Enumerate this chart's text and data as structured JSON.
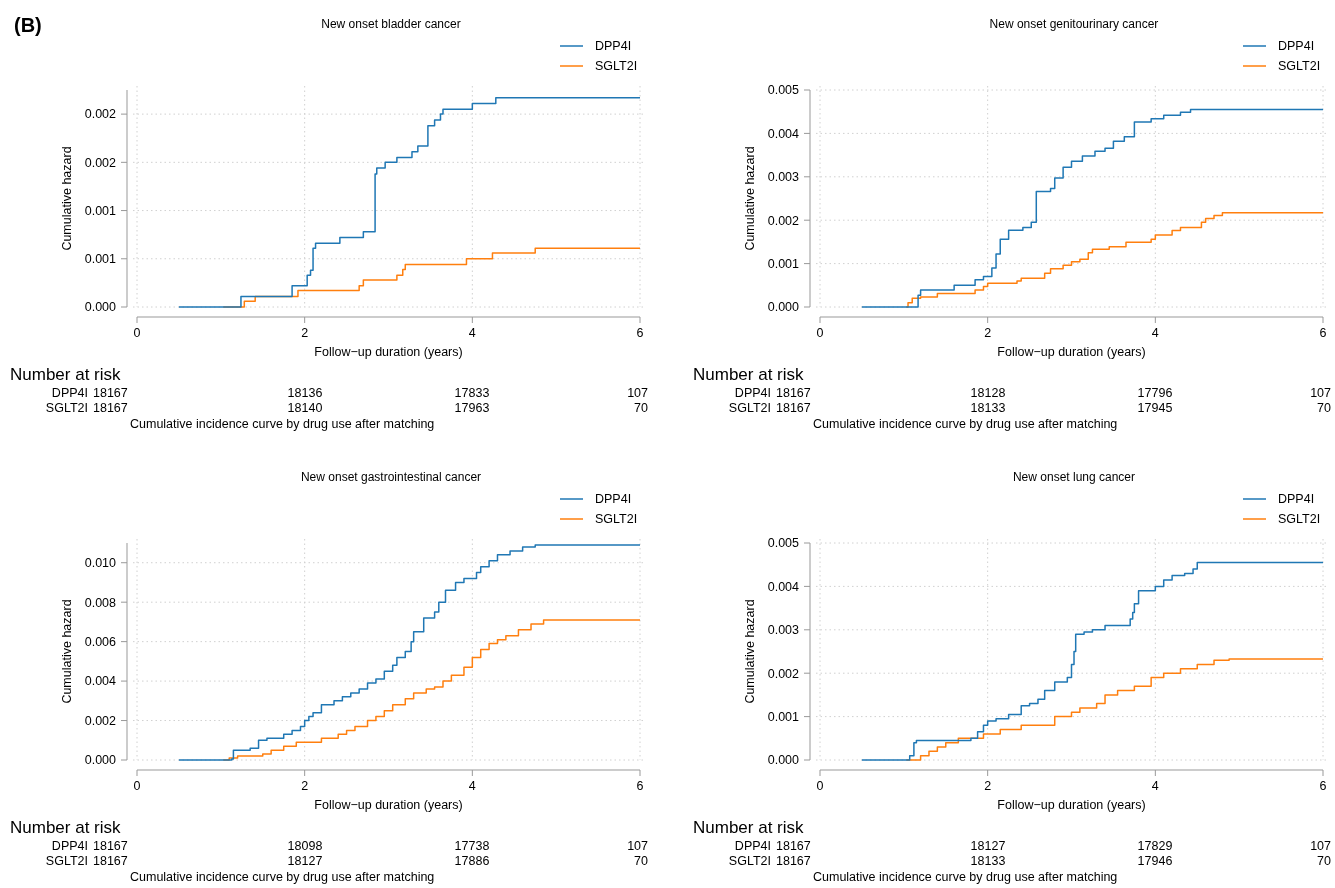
{
  "chart_data": [
    {
      "type": "step",
      "title": "New onset bladder cancer",
      "xlabel": "Follow−up duration (years)",
      "ylabel": "Cumulative hazard",
      "xlim": [
        0,
        6
      ],
      "xticks": [
        0,
        2,
        4,
        6
      ],
      "ylim": [
        0,
        0.00225
      ],
      "yticks": [
        {
          "value": 0,
          "label": "0.000"
        },
        {
          "value": 0.0005,
          "label": "0.001"
        },
        {
          "value": 0.001,
          "label": "0.001"
        },
        {
          "value": 0.0015,
          "label": "0.002"
        },
        {
          "value": 0.002,
          "label": "0.002"
        }
      ],
      "grid": true,
      "legend": "top right",
      "line_style": "solid",
      "series": [
        {
          "name": "DPP4I",
          "color": "#1f77b4",
          "x": [
            0.5,
            1.24,
            1.85,
            2.03,
            2.07,
            2.1,
            2.13,
            2.42,
            2.7,
            2.84,
            2.86,
            2.96,
            3.1,
            3.28,
            3.35,
            3.47,
            3.55,
            3.62,
            3.65,
            4.0,
            4.28,
            6
          ],
          "values": [
            0,
            0.00011,
            0.00022,
            0.00033,
            0.00038,
            0.00061,
            0.00066,
            0.00072,
            0.00078,
            0.00138,
            0.00144,
            0.0015,
            0.00155,
            0.00161,
            0.00167,
            0.00188,
            0.00194,
            0.002,
            0.00205,
            0.00211,
            0.00217,
            0.00217
          ]
        },
        {
          "name": "SGLT2I",
          "color": "#ff7f0e",
          "x": [
            1.03,
            1.28,
            1.41,
            1.92,
            2.65,
            2.7,
            3.1,
            3.17,
            3.2,
            3.93,
            4.24,
            4.75,
            6
          ],
          "values": [
            0,
            6e-05,
            0.00011,
            0.00017,
            0.00022,
            0.00028,
            0.00033,
            0.00039,
            0.00044,
            0.0005,
            0.00056,
            0.00061,
            0.00061
          ]
        }
      ],
      "annotations": [
        "Number at risk",
        "DPP4I",
        "18167",
        "18136",
        "17833",
        "107",
        "SGLT2I",
        "18167",
        "18140",
        "17963",
        "70",
        "Cumulative incidence curve by drug use after matching",
        "(B)"
      ]
    },
    {
      "type": "step",
      "title": "New onset genitourinary cancer",
      "xlabel": "Follow−up duration (years)",
      "ylabel": "Cumulative hazard",
      "xlim": [
        0,
        6
      ],
      "xticks": [
        0,
        2,
        4,
        6
      ],
      "ylim": [
        0,
        0.005
      ],
      "yticks": [
        {
          "value": 0,
          "label": "0.000"
        },
        {
          "value": 0.001,
          "label": "0.001"
        },
        {
          "value": 0.002,
          "label": "0.002"
        },
        {
          "value": 0.003,
          "label": "0.003"
        },
        {
          "value": 0.004,
          "label": "0.004"
        },
        {
          "value": 0.005,
          "label": "0.005"
        }
      ],
      "grid": true,
      "legend": "top right",
      "line_style": "solid",
      "series": [
        {
          "name": "DPP4I",
          "color": "#1f77b4",
          "x": [
            0.5,
            1.17,
            1.2,
            1.6,
            1.85,
            1.95,
            2.05,
            2.1,
            2.15,
            2.25,
            2.42,
            2.52,
            2.58,
            2.75,
            2.8,
            2.9,
            3.0,
            3.13,
            3.28,
            3.4,
            3.5,
            3.63,
            3.75,
            3.95,
            4.1,
            4.3,
            4.42,
            6
          ],
          "values": [
            0,
            0.00027,
            0.00039,
            0.0005,
            0.00063,
            0.0007,
            0.0009,
            0.00122,
            0.00156,
            0.00177,
            0.00183,
            0.00195,
            0.00266,
            0.00273,
            0.00297,
            0.00322,
            0.00336,
            0.00348,
            0.00359,
            0.00366,
            0.00382,
            0.00392,
            0.00426,
            0.00434,
            0.00442,
            0.00449,
            0.00455,
            0.00455
          ]
        },
        {
          "name": "SGLT2I",
          "color": "#ff7f0e",
          "x": [
            1.03,
            1.05,
            1.1,
            1.2,
            1.4,
            1.85,
            1.95,
            2.0,
            2.35,
            2.4,
            2.68,
            2.75,
            2.9,
            3.0,
            3.1,
            3.2,
            3.25,
            3.45,
            3.65,
            3.95,
            4.0,
            4.2,
            4.3,
            4.55,
            4.6,
            4.7,
            4.8,
            6
          ],
          "values": [
            0,
            0.0001,
            0.0002,
            0.00023,
            0.00031,
            0.00039,
            0.00047,
            0.00055,
            0.0006,
            0.00066,
            0.00078,
            0.00088,
            0.00096,
            0.00104,
            0.0011,
            0.00125,
            0.00133,
            0.00139,
            0.00149,
            0.00156,
            0.00166,
            0.00176,
            0.00183,
            0.00195,
            0.00204,
            0.00211,
            0.00217,
            0.00217
          ]
        }
      ],
      "annotations": [
        "Number at risk",
        "DPP4I",
        "18167",
        "18128",
        "17796",
        "107",
        "SGLT2I",
        "18167",
        "18133",
        "17945",
        "70",
        "Cumulative incidence curve by drug use after matching"
      ]
    },
    {
      "type": "step",
      "title": "New onset gastrointestinal cancer",
      "xlabel": "Follow−up duration (years)",
      "ylabel": "Cumulative hazard",
      "xlim": [
        0,
        6
      ],
      "xticks": [
        0,
        2,
        4,
        6
      ],
      "ylim": [
        0,
        0.011
      ],
      "yticks": [
        {
          "value": 0,
          "label": "0.000"
        },
        {
          "value": 0.002,
          "label": "0.002"
        },
        {
          "value": 0.004,
          "label": "0.004"
        },
        {
          "value": 0.006,
          "label": "0.006"
        },
        {
          "value": 0.008,
          "label": "0.008"
        },
        {
          "value": 0.01,
          "label": "0.010"
        }
      ],
      "grid": true,
      "legend": "top right",
      "line_style": "solid",
      "series": [
        {
          "name": "DPP4I",
          "color": "#1f77b4",
          "x": [
            0.5,
            1.13,
            1.15,
            1.35,
            1.45,
            1.55,
            1.75,
            1.85,
            1.95,
            2.0,
            2.05,
            2.1,
            2.2,
            2.35,
            2.45,
            2.55,
            2.65,
            2.75,
            2.85,
            2.95,
            3.05,
            3.1,
            3.2,
            3.27,
            3.3,
            3.42,
            3.55,
            3.6,
            3.68,
            3.8,
            3.9,
            4.05,
            4.1,
            4.2,
            4.3,
            4.45,
            4.6,
            4.75,
            6
          ],
          "values": [
            0,
            5e-05,
            0.0005,
            0.0006,
            0.001,
            0.0011,
            0.0013,
            0.0015,
            0.0017,
            0.002,
            0.0022,
            0.0024,
            0.0028,
            0.003,
            0.0032,
            0.0034,
            0.0036,
            0.0039,
            0.0041,
            0.0045,
            0.0048,
            0.0052,
            0.0055,
            0.006,
            0.0065,
            0.0072,
            0.0075,
            0.008,
            0.0086,
            0.009,
            0.0092,
            0.0095,
            0.0098,
            0.0101,
            0.0104,
            0.0106,
            0.0108,
            0.0109,
            0.0109
          ]
        },
        {
          "name": "SGLT2I",
          "color": "#ff7f0e",
          "x": [
            1.03,
            1.1,
            1.2,
            1.5,
            1.6,
            1.75,
            1.9,
            2.2,
            2.4,
            2.5,
            2.6,
            2.75,
            2.85,
            2.95,
            3.05,
            3.2,
            3.3,
            3.45,
            3.55,
            3.65,
            3.75,
            3.9,
            4.0,
            4.1,
            4.2,
            4.3,
            4.4,
            4.55,
            4.7,
            4.85,
            6
          ],
          "values": [
            0,
            0.0001,
            0.0002,
            0.0003,
            0.0005,
            0.0007,
            0.0009,
            0.0011,
            0.0013,
            0.0015,
            0.0017,
            0.002,
            0.0022,
            0.0025,
            0.0028,
            0.0031,
            0.0034,
            0.0036,
            0.0037,
            0.004,
            0.0043,
            0.0047,
            0.0052,
            0.0056,
            0.0059,
            0.0061,
            0.0063,
            0.0066,
            0.0069,
            0.0071,
            0.0071
          ]
        }
      ],
      "annotations": [
        "Number at risk",
        "DPP4I",
        "18167",
        "18098",
        "17738",
        "107",
        "SGLT2I",
        "18167",
        "18127",
        "17886",
        "70",
        "Cumulative incidence curve by drug use after matching"
      ]
    },
    {
      "type": "step",
      "title": "New onset lung cancer",
      "xlabel": "Follow−up duration (years)",
      "ylabel": "Cumulative hazard",
      "xlim": [
        0,
        6
      ],
      "xticks": [
        0,
        2,
        4,
        6
      ],
      "ylim": [
        0,
        0.005
      ],
      "yticks": [
        {
          "value": 0,
          "label": "0.000"
        },
        {
          "value": 0.001,
          "label": "0.001"
        },
        {
          "value": 0.002,
          "label": "0.002"
        },
        {
          "value": 0.003,
          "label": "0.003"
        },
        {
          "value": 0.004,
          "label": "0.004"
        },
        {
          "value": 0.005,
          "label": "0.005"
        }
      ],
      "grid": true,
      "legend": "top right",
      "line_style": "solid",
      "series": [
        {
          "name": "DPP4I",
          "color": "#1f77b4",
          "x": [
            0.5,
            1.07,
            1.12,
            1.15,
            1.8,
            1.88,
            1.95,
            2.0,
            2.1,
            2.25,
            2.4,
            2.5,
            2.6,
            2.68,
            2.8,
            2.95,
            3.0,
            3.03,
            3.05,
            3.15,
            3.25,
            3.4,
            3.7,
            3.73,
            3.75,
            3.8,
            4.0,
            4.1,
            4.2,
            4.35,
            4.45,
            4.5,
            6
          ],
          "values": [
            0,
            0.0001,
            0.0004,
            0.00045,
            0.0005,
            0.00065,
            0.0008,
            0.0009,
            0.00095,
            0.00105,
            0.00125,
            0.0013,
            0.0014,
            0.0016,
            0.0018,
            0.0019,
            0.0022,
            0.0025,
            0.0029,
            0.00295,
            0.003,
            0.0031,
            0.00325,
            0.0034,
            0.0036,
            0.0039,
            0.004,
            0.00415,
            0.00425,
            0.0043,
            0.0044,
            0.00455,
            0.00455
          ]
        },
        {
          "name": "SGLT2I",
          "color": "#ff7f0e",
          "x": [
            1.03,
            1.2,
            1.3,
            1.4,
            1.5,
            1.65,
            1.95,
            2.15,
            2.4,
            2.8,
            3.0,
            3.1,
            3.3,
            3.4,
            3.55,
            3.75,
            3.95,
            4.1,
            4.3,
            4.5,
            4.7,
            4.88,
            6
          ],
          "values": [
            0,
            0.0001,
            0.0002,
            0.0003,
            0.0004,
            0.0005,
            0.0006,
            0.0007,
            0.0008,
            0.001,
            0.0011,
            0.0012,
            0.0013,
            0.0015,
            0.0016,
            0.0017,
            0.0019,
            0.002,
            0.0021,
            0.0022,
            0.0023,
            0.00233,
            0.00233
          ]
        }
      ],
      "annotations": [
        "Number at risk",
        "DPP4I",
        "18167",
        "18127",
        "17829",
        "107",
        "SGLT2I",
        "18167",
        "18133",
        "17946",
        "70",
        "Cumulative incidence curve by drug use after matching"
      ]
    }
  ]
}
